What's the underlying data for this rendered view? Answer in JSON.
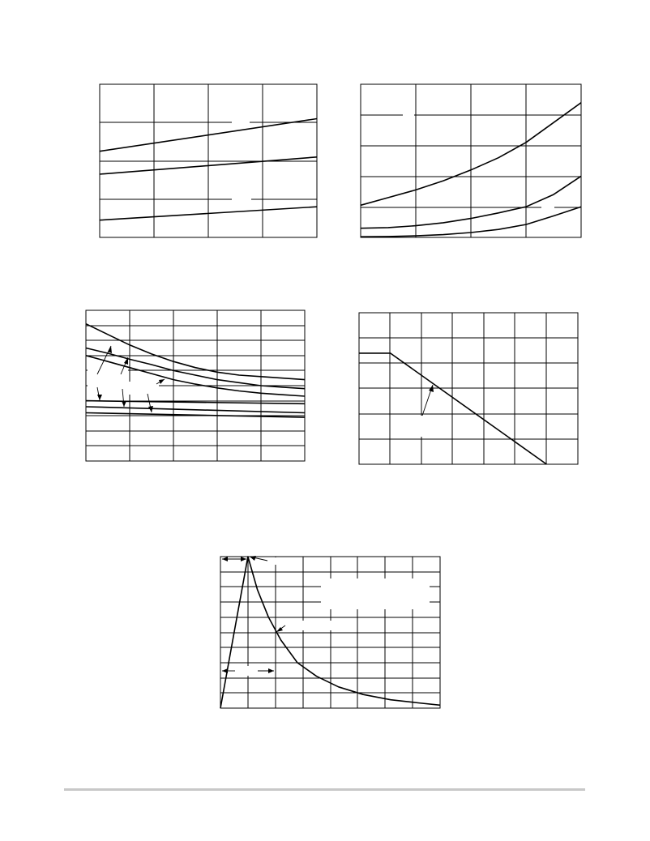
{
  "chart_data": [
    {
      "type": "line",
      "grid": true,
      "xlim": [
        0,
        4
      ],
      "ylim": [
        0,
        4
      ],
      "x_divisions": 4,
      "y_divisions": 4,
      "series": [
        {
          "x": [
            0,
            4
          ],
          "y": [
            2.25,
            3.1
          ]
        },
        {
          "x": [
            0,
            4
          ],
          "y": [
            1.65,
            2.1
          ]
        },
        {
          "x": [
            0,
            4
          ],
          "y": [
            0.45,
            0.8
          ]
        }
      ]
    },
    {
      "type": "line",
      "grid": true,
      "xlim": [
        0,
        4
      ],
      "ylim": [
        0,
        5
      ],
      "x_divisions": 4,
      "y_divisions": 5,
      "series": [
        {
          "x": [
            0,
            0.5,
            1,
            1.5,
            2,
            2.5,
            3,
            3.5,
            4
          ],
          "y": [
            1.05,
            1.3,
            1.55,
            1.85,
            2.2,
            2.6,
            3.1,
            3.75,
            4.4
          ]
        },
        {
          "x": [
            0,
            0.5,
            1,
            1.5,
            2,
            2.5,
            3,
            3.5,
            4
          ],
          "y": [
            0.3,
            0.32,
            0.38,
            0.48,
            0.62,
            0.8,
            1.0,
            1.4,
            2.0
          ]
        },
        {
          "x": [
            0,
            0.5,
            1,
            1.5,
            2,
            2.5,
            3,
            3.5,
            4
          ],
          "y": [
            0.02,
            0.03,
            0.05,
            0.09,
            0.16,
            0.26,
            0.42,
            0.7,
            1.0
          ]
        }
      ]
    },
    {
      "type": "line",
      "grid": true,
      "xlim": [
        0,
        5
      ],
      "ylim": [
        0,
        10
      ],
      "x_divisions": 5,
      "y_divisions": 10,
      "series": [
        {
          "x": [
            0,
            0.5,
            1,
            1.5,
            2,
            2.5,
            3,
            3.5,
            4,
            4.5,
            5
          ],
          "y": [
            9.1,
            8.4,
            7.7,
            7.1,
            6.6,
            6.2,
            5.9,
            5.7,
            5.6,
            5.5,
            5.4
          ]
        },
        {
          "x": [
            0,
            0.5,
            1,
            1.5,
            2,
            2.5,
            3,
            3.5,
            4,
            4.5,
            5
          ],
          "y": [
            7.5,
            7.15,
            6.75,
            6.4,
            6.0,
            5.7,
            5.4,
            5.2,
            5.0,
            4.9,
            4.8
          ]
        },
        {
          "x": [
            0,
            0.5,
            1,
            1.5,
            2,
            2.5,
            3,
            3.5,
            4,
            4.5,
            5
          ],
          "y": [
            7.0,
            6.6,
            6.2,
            5.8,
            5.4,
            5.1,
            4.85,
            4.65,
            4.5,
            4.4,
            4.3
          ]
        },
        {
          "x": [
            0,
            5
          ],
          "y": [
            4.0,
            3.8
          ]
        },
        {
          "x": [
            0,
            5
          ],
          "y": [
            3.6,
            3.2
          ]
        },
        {
          "x": [
            0,
            5
          ],
          "y": [
            3.2,
            2.9
          ]
        }
      ]
    },
    {
      "type": "line",
      "grid": true,
      "xlim": [
        0,
        7
      ],
      "ylim": [
        0,
        6
      ],
      "x_divisions": 7,
      "y_divisions": 6,
      "series": [
        {
          "x": [
            0,
            1,
            6.0
          ],
          "y": [
            4.4,
            4.4,
            0
          ]
        }
      ]
    },
    {
      "type": "line",
      "grid": true,
      "xlim": [
        0,
        8
      ],
      "ylim": [
        0,
        10
      ],
      "x_divisions": 8,
      "y_divisions": 10,
      "series": [
        {
          "x": [
            0,
            0.5,
            0.75,
            1,
            1.35,
            1.75,
            2.2,
            2.8,
            3.5,
            4.3,
            5.2,
            6.2,
            7.2,
            8
          ],
          "y": [
            0,
            5.0,
            7.5,
            10,
            7.8,
            6.0,
            4.5,
            3.0,
            2.1,
            1.4,
            0.9,
            0.55,
            0.35,
            0.2
          ]
        }
      ]
    }
  ]
}
